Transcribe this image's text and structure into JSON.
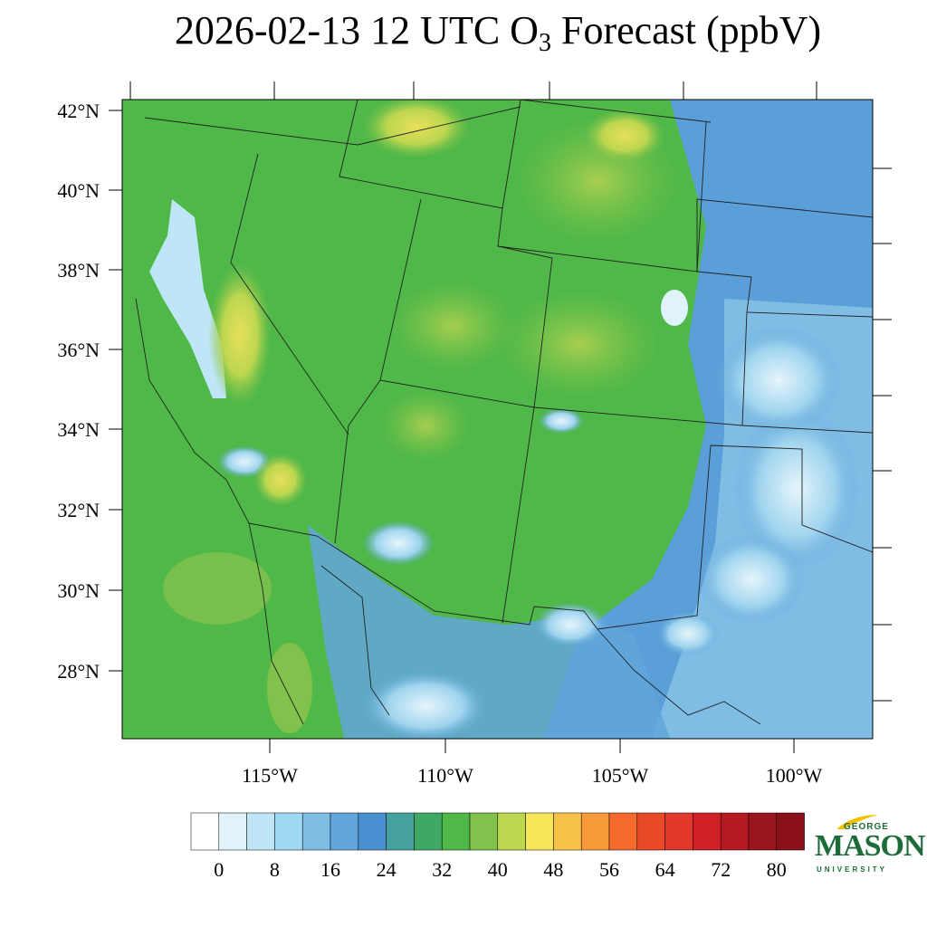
{
  "title": {
    "prefix": "2026-02-13 12 UTC O",
    "subscript": "3",
    "suffix": " Forecast (ppbV)"
  },
  "axes": {
    "latitude_labels": [
      "42°N",
      "40°N",
      "38°N",
      "36°N",
      "34°N",
      "32°N",
      "30°N",
      "28°N"
    ],
    "longitude_labels": [
      "115°W",
      "110°W",
      "105°W",
      "100°W"
    ]
  },
  "colorbar": {
    "colors": [
      "#ffffff",
      "#e0f3fb",
      "#bfe6f6",
      "#9fd8f2",
      "#7fbde4",
      "#62a6db",
      "#4a8fcf",
      "#45a29e",
      "#3fa866",
      "#4fb848",
      "#80c24c",
      "#bdd650",
      "#f7e65a",
      "#f8c24a",
      "#f79a3a",
      "#f46a2c",
      "#e84a28",
      "#e1382b",
      "#cf2028",
      "#b51a22",
      "#9a1520",
      "#8a111a"
    ],
    "tick_labels": [
      "0",
      "8",
      "16",
      "24",
      "32",
      "40",
      "48",
      "56",
      "64",
      "72",
      "80"
    ]
  },
  "logo": {
    "line1": "GEORGE",
    "line2": "MASON",
    "line3": "UNIVERSITY"
  }
}
